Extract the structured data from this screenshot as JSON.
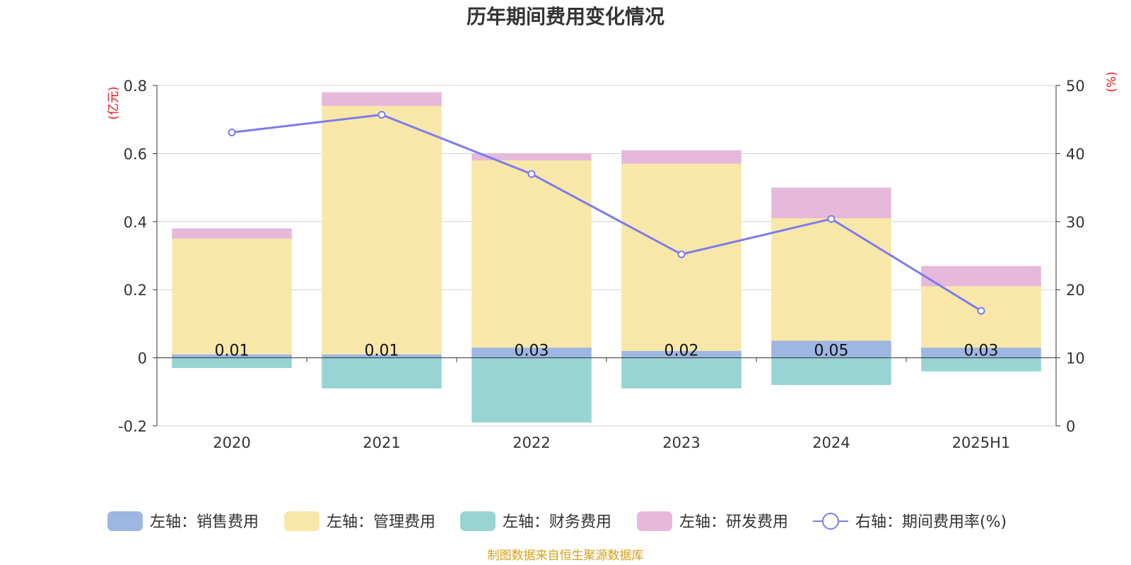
{
  "chart_data": {
    "type": "bar",
    "title": "历年期间费用变化情况",
    "categories": [
      "2020",
      "2021",
      "2022",
      "2023",
      "2024",
      "2025H1"
    ],
    "left_axis": {
      "unit": "(亿元)",
      "ylim": [
        -0.2,
        0.8
      ],
      "ticks": [
        "-0.2",
        "0",
        "0.2",
        "0.4",
        "0.6",
        "0.8"
      ],
      "tick_values": [
        -0.2,
        0,
        0.2,
        0.4,
        0.6,
        0.8
      ]
    },
    "right_axis": {
      "unit": "(%)",
      "ylim": [
        0,
        50
      ],
      "ticks": [
        "0",
        "10",
        "20",
        "30",
        "40",
        "50"
      ],
      "tick_values": [
        0,
        10,
        20,
        30,
        40,
        50
      ]
    },
    "series": [
      {
        "name": "左轴：销售费用",
        "type": "bar",
        "axis": "left",
        "color": "#9db6e2",
        "values": [
          0.01,
          0.01,
          0.03,
          0.02,
          0.05,
          0.03
        ],
        "labels": [
          "0.01",
          "0.01",
          "0.03",
          "0.02",
          "0.05",
          "0.03"
        ]
      },
      {
        "name": "左轴：管理费用",
        "type": "bar",
        "axis": "left",
        "color": "#f8e7a8",
        "values": [
          0.34,
          0.73,
          0.55,
          0.55,
          0.36,
          0.18
        ]
      },
      {
        "name": "左轴：财务费用",
        "type": "bar",
        "axis": "left",
        "color": "#98d4d4",
        "values": [
          -0.03,
          -0.09,
          -0.19,
          -0.09,
          -0.08,
          -0.04
        ]
      },
      {
        "name": "左轴：研发费用",
        "type": "bar",
        "axis": "left",
        "color": "#e6b9da",
        "values": [
          0.03,
          0.04,
          0.02,
          0.04,
          0.09,
          0.06
        ]
      },
      {
        "name": "右轴：期间费用率(%)",
        "type": "line",
        "axis": "right",
        "color": "#7b7cee",
        "values": [
          43.1,
          45.7,
          37.0,
          25.2,
          30.4,
          16.9
        ]
      }
    ],
    "grid": true,
    "legend_position": "bottom"
  },
  "footer": {
    "source": "制图数据来自恒生聚源数据库"
  }
}
